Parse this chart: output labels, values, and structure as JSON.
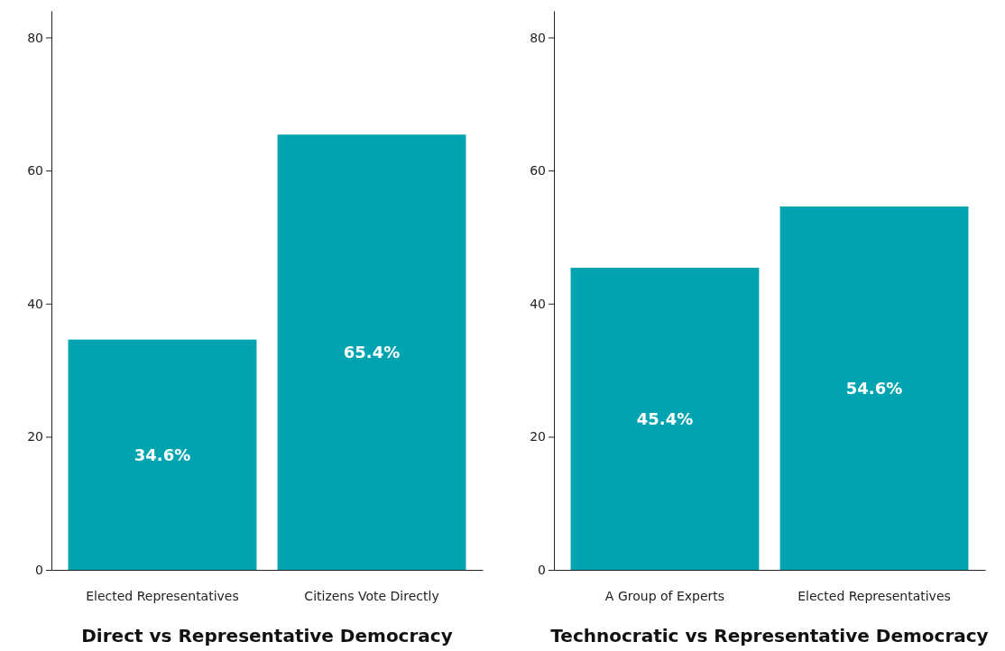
{
  "chart_data": [
    {
      "type": "bar",
      "xlabel": "Direct vs Representative Democracy",
      "categories": [
        "Elected Representatives",
        "Citizens Vote Directly"
      ],
      "values": [
        34.6,
        65.4
      ],
      "value_labels": [
        "34.6%",
        "65.4%"
      ],
      "color": "#00a3b0",
      "ylim": [
        0,
        84
      ],
      "yticks": [
        0,
        20,
        40,
        60,
        80
      ]
    },
    {
      "type": "bar",
      "xlabel": "Technocratic vs Representative Democracy",
      "categories": [
        "A Group of Experts",
        "Elected Representatives"
      ],
      "values": [
        45.4,
        54.6
      ],
      "value_labels": [
        "45.4%",
        "54.6%"
      ],
      "color": "#00a3b0",
      "ylim": [
        0,
        84
      ],
      "yticks": [
        0,
        20,
        40,
        60,
        80
      ]
    }
  ]
}
